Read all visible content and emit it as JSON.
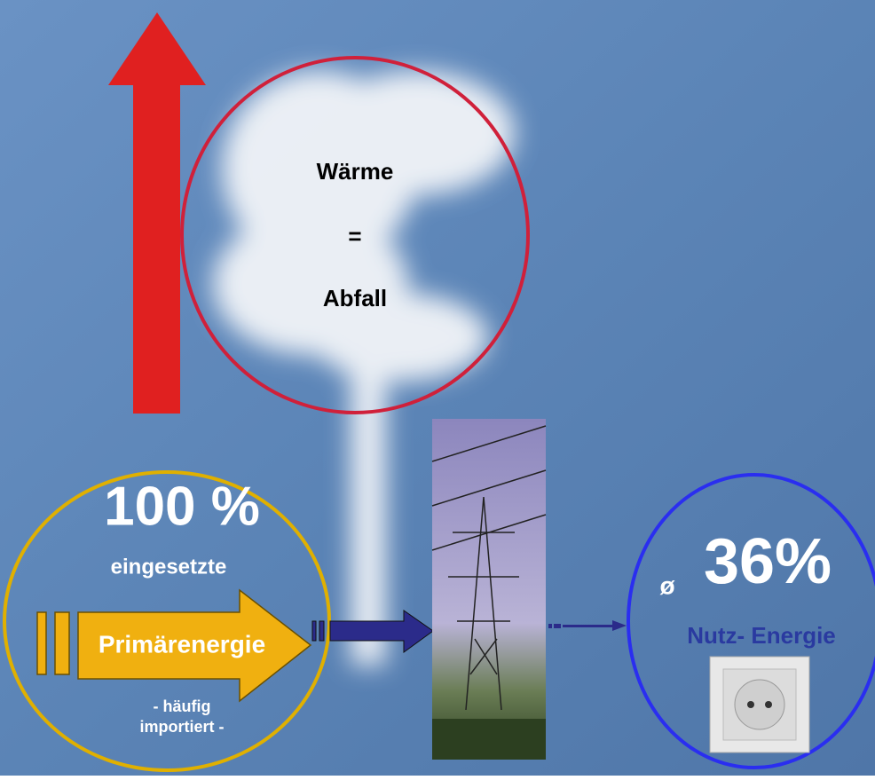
{
  "heat": {
    "line1": "Wärme",
    "line2": "=",
    "line3": "Abfall"
  },
  "input": {
    "percent": "100 %",
    "label1": "eingesetzte",
    "label2": "Primärenergie",
    "note1": "- häufig",
    "note2": "importiert -"
  },
  "output": {
    "symbol": "ø",
    "percent": "36%",
    "label": "Nutz- Energie"
  }
}
